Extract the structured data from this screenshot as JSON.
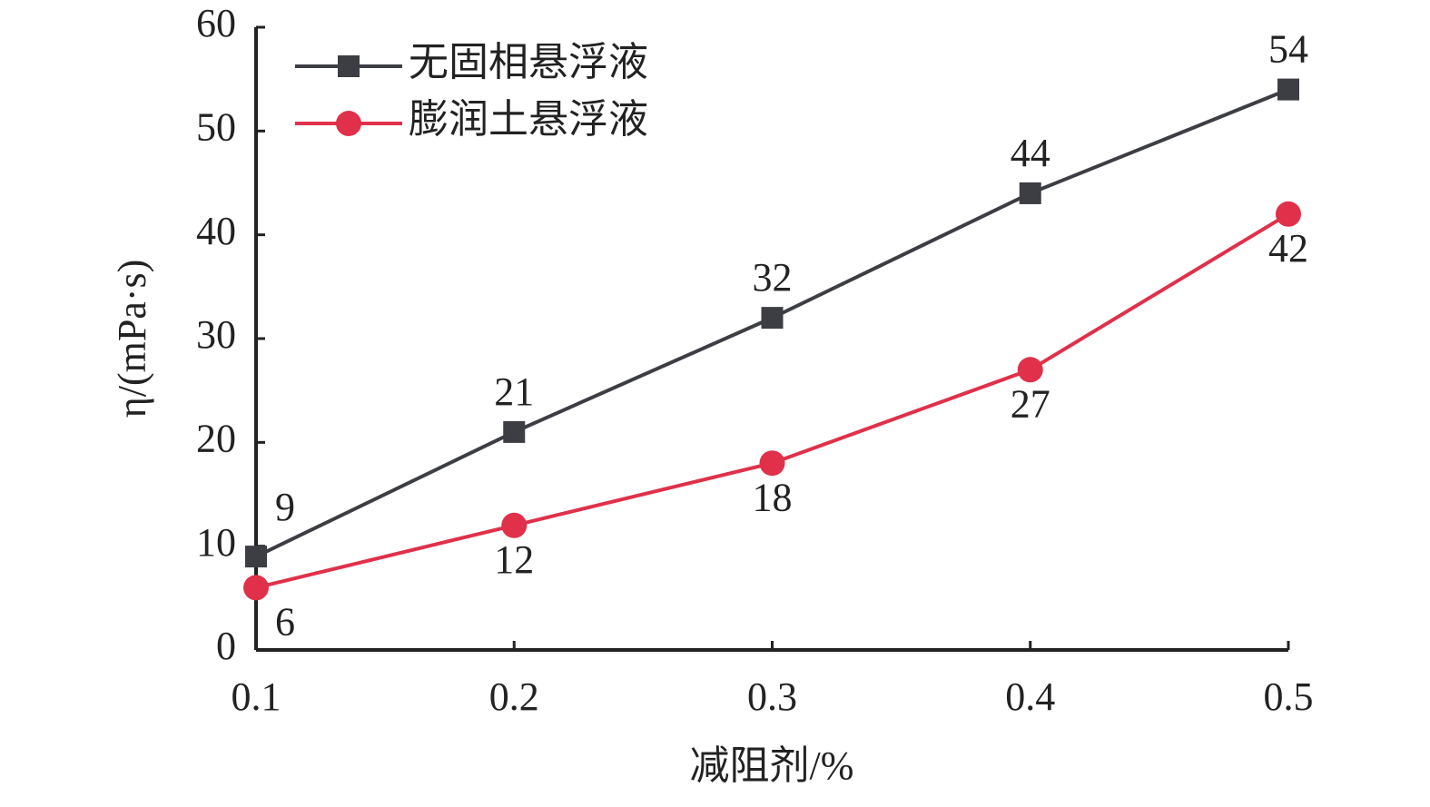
{
  "chart_data": {
    "type": "line",
    "x_label": "减阻剂/%",
    "y_label": "η/(mPa·s)",
    "x": [
      0.1,
      0.2,
      0.3,
      0.4,
      0.5
    ],
    "series": [
      {
        "name": "无固相悬浮液",
        "color": "#3d3e44",
        "marker": "square",
        "values": [
          9,
          21,
          32,
          44,
          54
        ]
      },
      {
        "name": "膨润土悬浮液",
        "color": "#e0304a",
        "marker": "circle",
        "values": [
          6,
          12,
          18,
          27,
          42
        ]
      }
    ],
    "xlim": [
      0.1,
      0.5
    ],
    "xticks": [
      0.1,
      0.2,
      0.3,
      0.4,
      0.5
    ],
    "ylim": [
      0,
      60
    ],
    "yticks": [
      0,
      10,
      20,
      30,
      40,
      50,
      60
    ],
    "legend": "upper left"
  }
}
